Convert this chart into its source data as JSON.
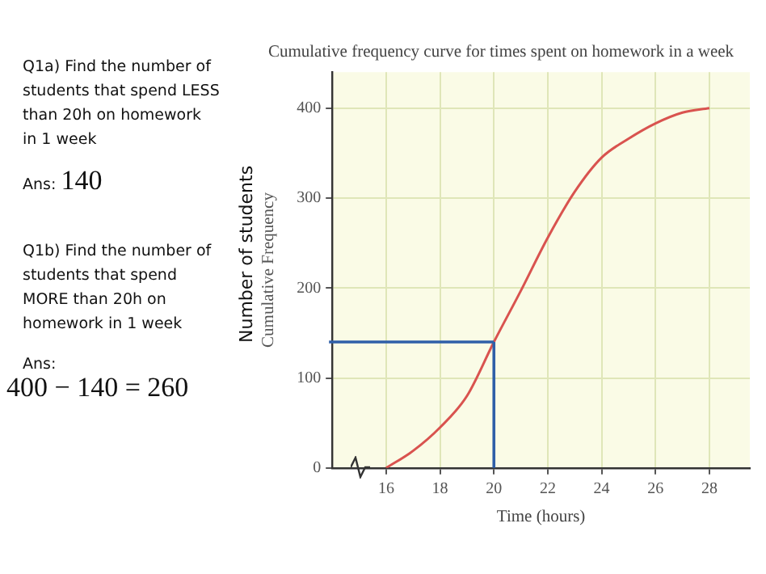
{
  "chart_data": {
    "type": "line",
    "title": "Cumulative frequency curve for times spent on homework in a week",
    "xlabel": "Time (hours)",
    "ylabel": "Cumulative Frequency",
    "x": [
      16,
      17,
      18,
      19,
      20,
      21,
      22,
      23,
      24,
      25,
      26,
      27,
      28
    ],
    "series": [
      {
        "color": "#d9534f",
        "values": [
          0,
          19,
          45,
          80,
          140,
          197,
          256,
          307,
          345,
          366,
          383,
          395,
          400
        ]
      }
    ],
    "xlim": [
      14,
      29.5
    ],
    "xticks": [
      16,
      18,
      20,
      22,
      24,
      26,
      28
    ],
    "ylim": [
      0,
      440
    ],
    "yticks": [
      0,
      100,
      200,
      300,
      400
    ],
    "grid": true,
    "legend": false,
    "marker": "none",
    "line_style": "solid",
    "ref_lines": [
      {
        "axis": "y",
        "value": 140,
        "color": "#2f5fa8"
      },
      {
        "axis": "x",
        "value": 20,
        "color": "#2f5fa8"
      }
    ],
    "annotations": [
      "Q1a) Find the number of students that spend LESS than 20h on homework in 1 week",
      "Ans:",
      "140",
      "Q1b) Find the number of students that spend MORE than 20h on homework in 1 week",
      "Ans:",
      "400 − 140 = 260",
      "Number of students"
    ]
  }
}
